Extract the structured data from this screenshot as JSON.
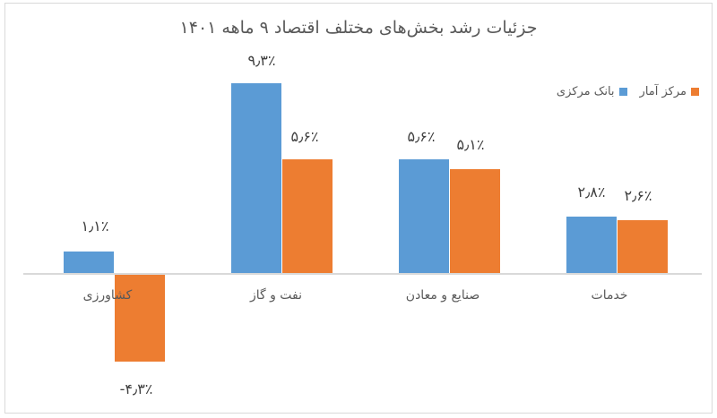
{
  "title": "جزئیات رشد بخش‌های مختلف اقتصاد ۹ ماهه ۱۴۰۱",
  "legend": [
    {
      "label": "مرکز آمار",
      "color": "#ED7D31"
    },
    {
      "label": "بانک مرکزی",
      "color": "#5B9BD5"
    }
  ],
  "colors": {
    "central_bank": "#5B9BD5",
    "statistics_center": "#ED7D31",
    "axis": "#d9d9d9"
  },
  "categories": [
    {
      "label": "کشاورزی",
      "bank_label": "۱٫۱٪",
      "stat_label": "-۴٫۳٪"
    },
    {
      "label": "نفت و گاز",
      "bank_label": "۹٫۳٪",
      "stat_label": "۵٫۶٪"
    },
    {
      "label": "صنایع و معادن",
      "bank_label": "۵٫۶٪",
      "stat_label": "۵٫۱٪"
    },
    {
      "label": "خدمات",
      "bank_label": "۲٫۸٪",
      "stat_label": "۲٫۶٪"
    }
  ],
  "chart_data": {
    "type": "bar",
    "title": "جزئیات رشد بخش‌های مختلف اقتصاد ۹ ماهه ۱۴۰۱",
    "categories": [
      "کشاورزی",
      "نفت و گاز",
      "صنایع و معادن",
      "خدمات"
    ],
    "series": [
      {
        "name": "بانک مرکزی",
        "color": "#5B9BD5",
        "values": [
          1.1,
          9.3,
          5.6,
          2.8
        ]
      },
      {
        "name": "مرکز آمار",
        "color": "#ED7D31",
        "values": [
          -4.3,
          5.6,
          5.1,
          2.6
        ]
      }
    ],
    "unit": "%",
    "xlabel": "",
    "ylabel": "",
    "grid": false,
    "legend_position": "top-right",
    "data_labels": true
  }
}
